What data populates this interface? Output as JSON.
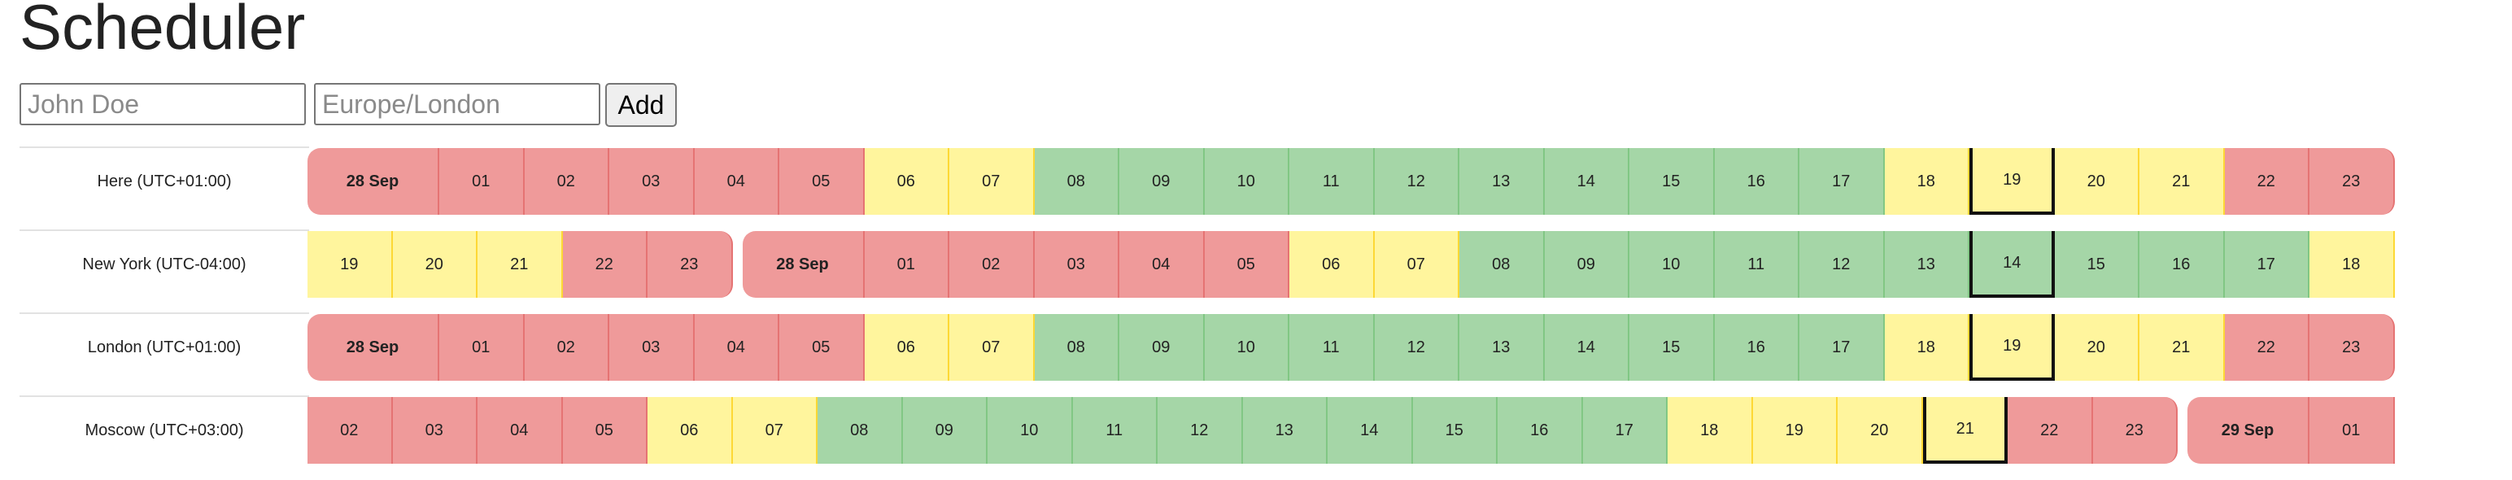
{
  "title": "Scheduler",
  "form": {
    "name_placeholder": "John Doe",
    "tz_placeholder": "Europe/London",
    "add_label": "Add"
  },
  "colors": {
    "red": "#ef9a9a",
    "yellow": "#fff59d",
    "green": "#a5d6a7"
  },
  "current_column_index": 19,
  "rows": [
    {
      "label": "Here (UTC+01:00)",
      "cells": [
        {
          "t": "28 Sep",
          "c": "red",
          "bold": true
        },
        {
          "t": "01",
          "c": "red"
        },
        {
          "t": "02",
          "c": "red"
        },
        {
          "t": "03",
          "c": "red"
        },
        {
          "t": "04",
          "c": "red"
        },
        {
          "t": "05",
          "c": "red"
        },
        {
          "t": "06",
          "c": "yellow"
        },
        {
          "t": "07",
          "c": "yellow"
        },
        {
          "t": "08",
          "c": "green"
        },
        {
          "t": "09",
          "c": "green"
        },
        {
          "t": "10",
          "c": "green"
        },
        {
          "t": "11",
          "c": "green"
        },
        {
          "t": "12",
          "c": "green"
        },
        {
          "t": "13",
          "c": "green"
        },
        {
          "t": "14",
          "c": "green"
        },
        {
          "t": "15",
          "c": "green"
        },
        {
          "t": "16",
          "c": "green"
        },
        {
          "t": "17",
          "c": "green"
        },
        {
          "t": "18",
          "c": "yellow"
        },
        {
          "t": "19",
          "c": "yellow"
        },
        {
          "t": "20",
          "c": "yellow"
        },
        {
          "t": "21",
          "c": "yellow"
        },
        {
          "t": "22",
          "c": "red"
        },
        {
          "t": "23",
          "c": "red"
        }
      ]
    },
    {
      "label": "New York (UTC-04:00)",
      "cells": [
        {
          "t": "19",
          "c": "yellow"
        },
        {
          "t": "20",
          "c": "yellow"
        },
        {
          "t": "21",
          "c": "yellow"
        },
        {
          "t": "22",
          "c": "red"
        },
        {
          "t": "23",
          "c": "red"
        },
        {
          "t": "28 Sep",
          "c": "red",
          "bold": true
        },
        {
          "t": "01",
          "c": "red"
        },
        {
          "t": "02",
          "c": "red"
        },
        {
          "t": "03",
          "c": "red"
        },
        {
          "t": "04",
          "c": "red"
        },
        {
          "t": "05",
          "c": "red"
        },
        {
          "t": "06",
          "c": "yellow"
        },
        {
          "t": "07",
          "c": "yellow"
        },
        {
          "t": "08",
          "c": "green"
        },
        {
          "t": "09",
          "c": "green"
        },
        {
          "t": "10",
          "c": "green"
        },
        {
          "t": "11",
          "c": "green"
        },
        {
          "t": "12",
          "c": "green"
        },
        {
          "t": "13",
          "c": "green"
        },
        {
          "t": "14",
          "c": "green"
        },
        {
          "t": "15",
          "c": "green"
        },
        {
          "t": "16",
          "c": "green"
        },
        {
          "t": "17",
          "c": "green"
        },
        {
          "t": "18",
          "c": "yellow"
        }
      ]
    },
    {
      "label": "London (UTC+01:00)",
      "cells": [
        {
          "t": "28 Sep",
          "c": "red",
          "bold": true
        },
        {
          "t": "01",
          "c": "red"
        },
        {
          "t": "02",
          "c": "red"
        },
        {
          "t": "03",
          "c": "red"
        },
        {
          "t": "04",
          "c": "red"
        },
        {
          "t": "05",
          "c": "red"
        },
        {
          "t": "06",
          "c": "yellow"
        },
        {
          "t": "07",
          "c": "yellow"
        },
        {
          "t": "08",
          "c": "green"
        },
        {
          "t": "09",
          "c": "green"
        },
        {
          "t": "10",
          "c": "green"
        },
        {
          "t": "11",
          "c": "green"
        },
        {
          "t": "12",
          "c": "green"
        },
        {
          "t": "13",
          "c": "green"
        },
        {
          "t": "14",
          "c": "green"
        },
        {
          "t": "15",
          "c": "green"
        },
        {
          "t": "16",
          "c": "green"
        },
        {
          "t": "17",
          "c": "green"
        },
        {
          "t": "18",
          "c": "yellow"
        },
        {
          "t": "19",
          "c": "yellow"
        },
        {
          "t": "20",
          "c": "yellow"
        },
        {
          "t": "21",
          "c": "yellow"
        },
        {
          "t": "22",
          "c": "red"
        },
        {
          "t": "23",
          "c": "red"
        }
      ]
    },
    {
      "label": "Moscow (UTC+03:00)",
      "cells": [
        {
          "t": "02",
          "c": "red"
        },
        {
          "t": "03",
          "c": "red"
        },
        {
          "t": "04",
          "c": "red"
        },
        {
          "t": "05",
          "c": "red"
        },
        {
          "t": "06",
          "c": "yellow"
        },
        {
          "t": "07",
          "c": "yellow"
        },
        {
          "t": "08",
          "c": "green"
        },
        {
          "t": "09",
          "c": "green"
        },
        {
          "t": "10",
          "c": "green"
        },
        {
          "t": "11",
          "c": "green"
        },
        {
          "t": "12",
          "c": "green"
        },
        {
          "t": "13",
          "c": "green"
        },
        {
          "t": "14",
          "c": "green"
        },
        {
          "t": "15",
          "c": "green"
        },
        {
          "t": "16",
          "c": "green"
        },
        {
          "t": "17",
          "c": "green"
        },
        {
          "t": "18",
          "c": "yellow"
        },
        {
          "t": "19",
          "c": "yellow"
        },
        {
          "t": "20",
          "c": "yellow"
        },
        {
          "t": "21",
          "c": "yellow"
        },
        {
          "t": "22",
          "c": "red"
        },
        {
          "t": "23",
          "c": "red"
        },
        {
          "t": "29 Sep",
          "c": "red",
          "bold": true
        },
        {
          "t": "01",
          "c": "red"
        }
      ]
    }
  ]
}
